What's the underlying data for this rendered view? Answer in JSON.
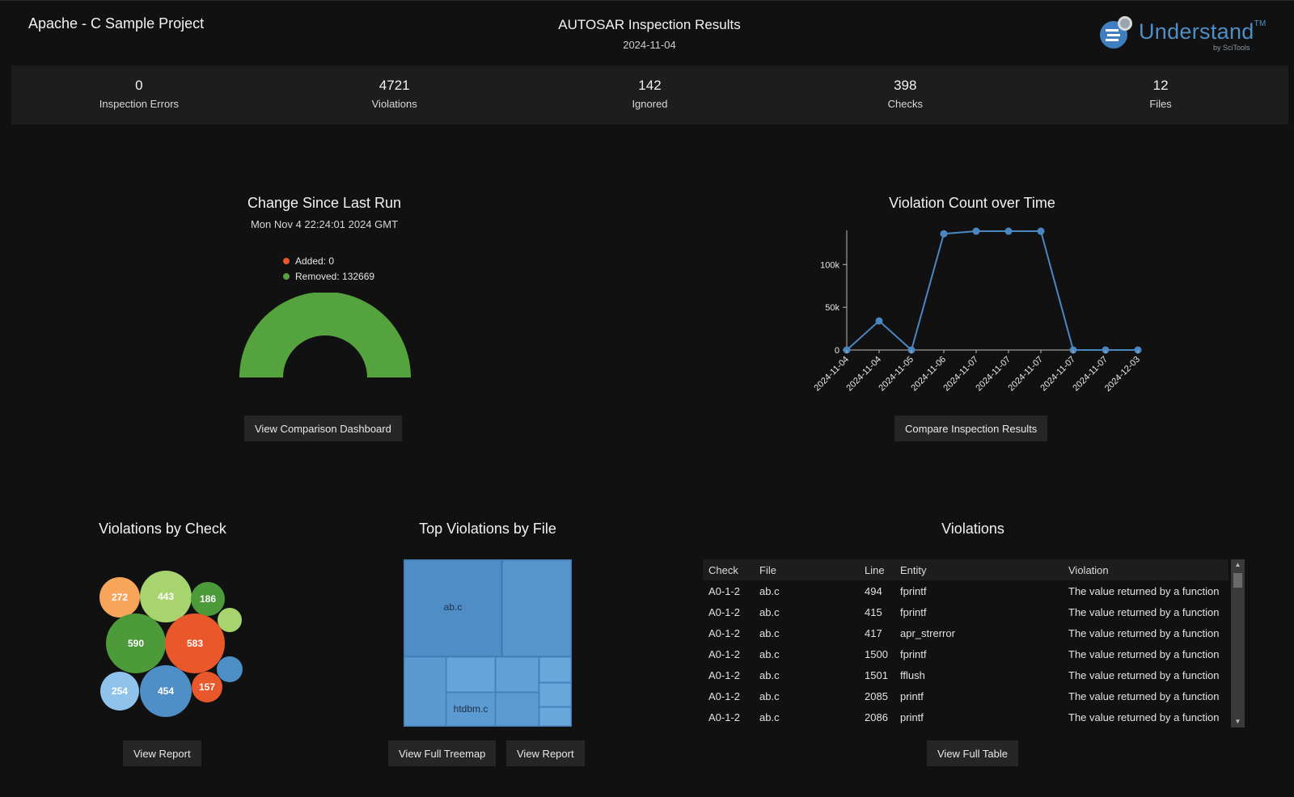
{
  "header": {
    "project": "Apache - C Sample Project",
    "title": "AUTOSAR Inspection Results",
    "date": "2024-11-04",
    "logo_text": "Understand",
    "logo_tm": "TM",
    "logo_sub": "by SciTools"
  },
  "stats": [
    {
      "value": "0",
      "label": "Inspection Errors"
    },
    {
      "value": "4721",
      "label": "Violations"
    },
    {
      "value": "142",
      "label": "Ignored"
    },
    {
      "value": "398",
      "label": "Checks"
    },
    {
      "value": "12",
      "label": "Files"
    }
  ],
  "change": {
    "title": "Change Since Last Run",
    "date": "Mon Nov 4 22:24:01 2024 GMT",
    "added_label": "Added: 0",
    "removed_label": "Removed: 132669",
    "added": 0,
    "removed": 132669,
    "button": "View Comparison Dashboard"
  },
  "time_chart": {
    "title": "Violation Count over Time",
    "button": "Compare Inspection Results"
  },
  "chart_data": {
    "type": "line",
    "title": "Violation Count over Time",
    "x": [
      "2024-11-04",
      "2024-11-04",
      "2024-11-05",
      "2024-11-06",
      "2024-11-07",
      "2024-11-07",
      "2024-11-07",
      "2024-11-07",
      "2024-11-07",
      "2024-12-03"
    ],
    "values": [
      0,
      34000,
      0,
      136000,
      139000,
      139000,
      139000,
      0,
      0,
      0
    ],
    "yticks": [
      0,
      50000,
      100000
    ],
    "ytick_labels": [
      "0",
      "50k",
      "100k"
    ],
    "ylim": [
      0,
      140000
    ],
    "color": "#4a87c1"
  },
  "checks": {
    "title": "Violations by Check",
    "button": "View Report",
    "bubbles": [
      {
        "label": "272",
        "color": "#f6a55a"
      },
      {
        "label": "443",
        "color": "#a8d46f"
      },
      {
        "label": "186",
        "color": "#4c9a3a"
      },
      {
        "label": "",
        "color": "#a8d46f"
      },
      {
        "label": "590",
        "color": "#4c9a3a"
      },
      {
        "label": "583",
        "color": "#e8582a"
      },
      {
        "label": "",
        "color": "#4f8fc8"
      },
      {
        "label": "254",
        "color": "#8fc3ec"
      },
      {
        "label": "454",
        "color": "#4f8fc8"
      },
      {
        "label": "157",
        "color": "#e8582a"
      }
    ]
  },
  "files": {
    "title": "Top Violations by File",
    "label_a": "ab.c",
    "label_b": "htdbm.c",
    "button_treemap": "View Full Treemap",
    "button_report": "View Report"
  },
  "violations": {
    "title": "Violations",
    "columns": [
      "Check",
      "File",
      "Line",
      "Entity",
      "Violation"
    ],
    "rows": [
      [
        "A0-1-2",
        "ab.c",
        "494",
        "fprintf",
        "The value returned by a function"
      ],
      [
        "A0-1-2",
        "ab.c",
        "415",
        "fprintf",
        "The value returned by a function"
      ],
      [
        "A0-1-2",
        "ab.c",
        "417",
        "apr_strerror",
        "The value returned by a function"
      ],
      [
        "A0-1-2",
        "ab.c",
        "1500",
        "fprintf",
        "The value returned by a function"
      ],
      [
        "A0-1-2",
        "ab.c",
        "1501",
        "fflush",
        "The value returned by a function"
      ],
      [
        "A0-1-2",
        "ab.c",
        "2085",
        "printf",
        "The value returned by a function"
      ],
      [
        "A0-1-2",
        "ab.c",
        "2086",
        "printf",
        "The value returned by a function"
      ]
    ],
    "button": "View Full Table"
  }
}
